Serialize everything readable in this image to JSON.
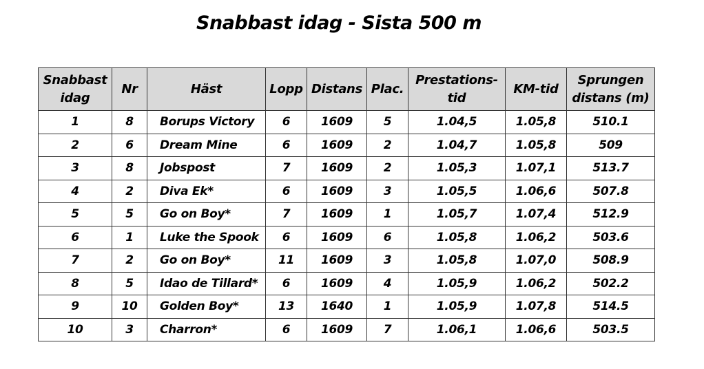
{
  "header": {
    "title": "Snabbast idag - Sista 500 m"
  },
  "table": {
    "columns": [
      [
        "Snabbast",
        "idag"
      ],
      [
        "Nr"
      ],
      [
        "Häst"
      ],
      [
        "Lopp"
      ],
      [
        "Distans"
      ],
      [
        "Plac."
      ],
      [
        "Prestations-",
        "tid"
      ],
      [
        "KM-tid"
      ],
      [
        "Sprungen",
        "distans (m)"
      ]
    ],
    "rows": [
      [
        "1",
        "8",
        "Borups Victory",
        "6",
        "1609",
        "5",
        "1.04,5",
        "1.05,8",
        "510.1"
      ],
      [
        "2",
        "6",
        "Dream Mine",
        "6",
        "1609",
        "2",
        "1.04,7",
        "1.05,8",
        "509"
      ],
      [
        "3",
        "8",
        "Jobspost",
        "7",
        "1609",
        "2",
        "1.05,3",
        "1.07,1",
        "513.7"
      ],
      [
        "4",
        "2",
        "Diva Ek*",
        "6",
        "1609",
        "3",
        "1.05,5",
        "1.06,6",
        "507.8"
      ],
      [
        "5",
        "5",
        "Go on Boy*",
        "7",
        "1609",
        "1",
        "1.05,7",
        "1.07,4",
        "512.9"
      ],
      [
        "6",
        "1",
        "Luke the Spook",
        "6",
        "1609",
        "6",
        "1.05,8",
        "1.06,2",
        "503.6"
      ],
      [
        "7",
        "2",
        "Go on Boy*",
        "11",
        "1609",
        "3",
        "1.05,8",
        "1.07,0",
        "508.9"
      ],
      [
        "8",
        "5",
        "Idao de Tillard*",
        "6",
        "1609",
        "4",
        "1.05,9",
        "1.06,2",
        "502.2"
      ],
      [
        "9",
        "10",
        "Golden Boy*",
        "13",
        "1640",
        "1",
        "1.05,9",
        "1.07,8",
        "514.5"
      ],
      [
        "10",
        "3",
        "Charron*",
        "6",
        "1609",
        "7",
        "1.06,1",
        "1.06,6",
        "503.5"
      ]
    ]
  }
}
